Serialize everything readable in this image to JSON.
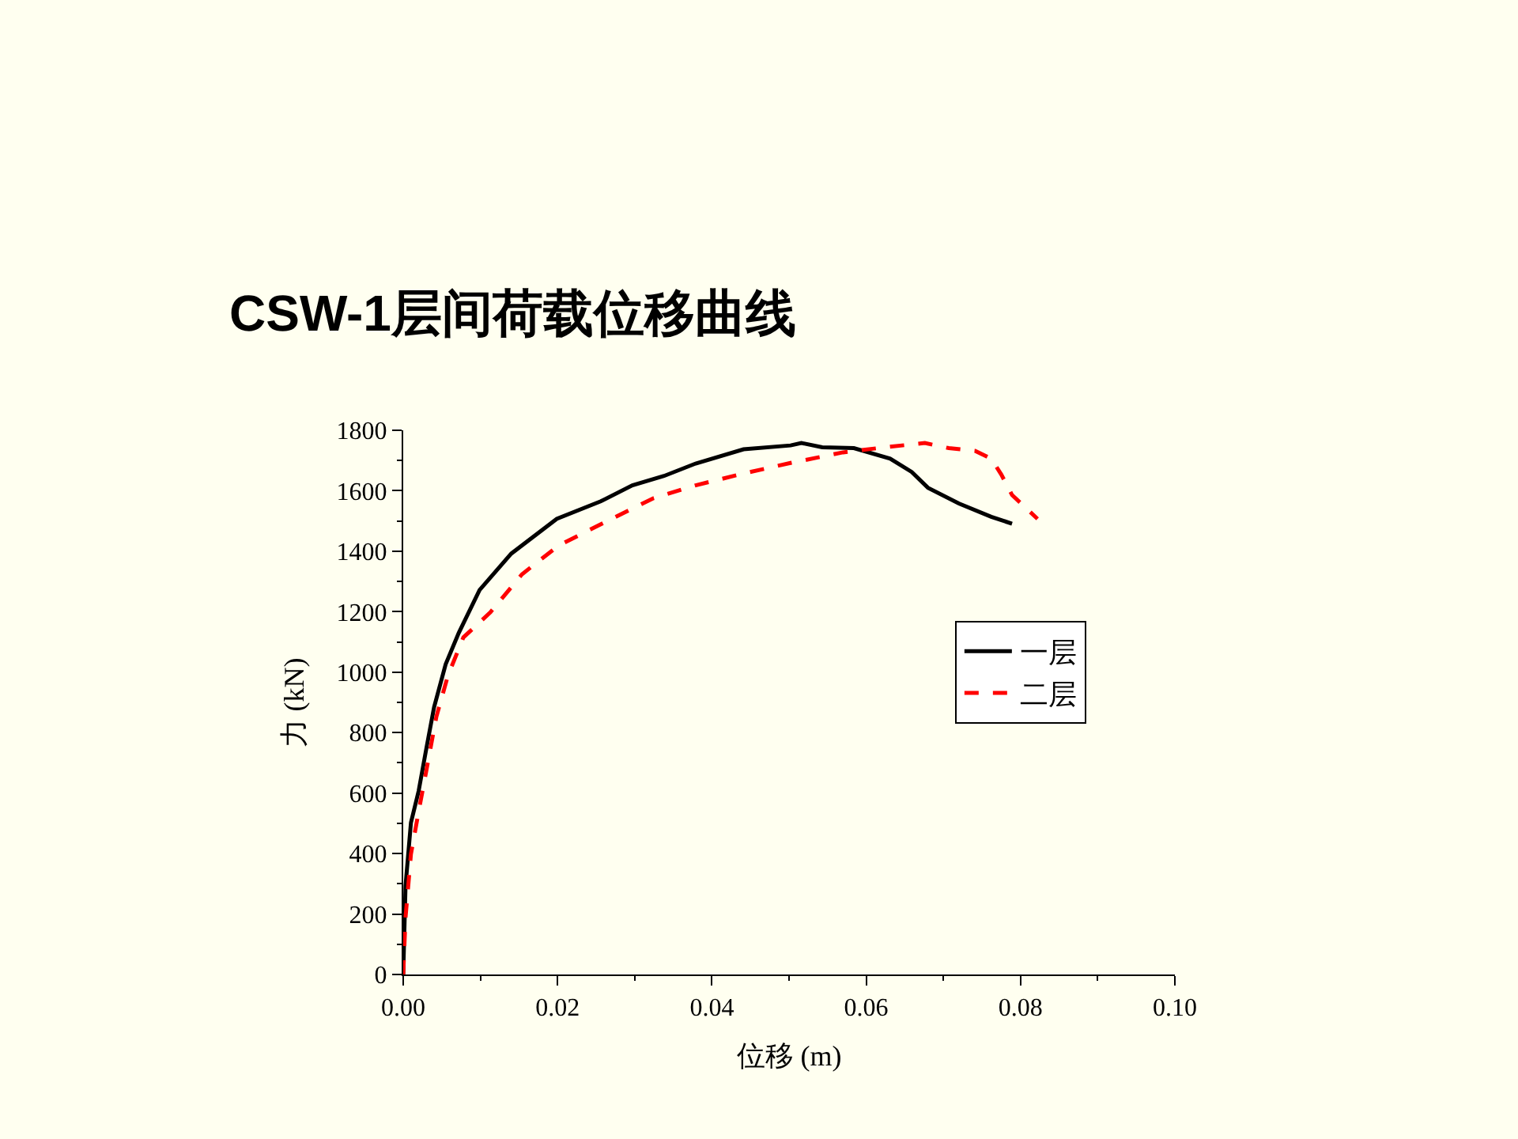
{
  "chart_data": {
    "type": "line",
    "title": "CSW-1层间荷载位移曲线",
    "xlabel": "位移 (m)",
    "ylabel": "力 (kN)",
    "xlim": [
      0,
      0.1
    ],
    "xticks": [
      {
        "value": 0,
        "label": "0.00"
      },
      {
        "value": 0.02,
        "label": "0.02"
      },
      {
        "value": 0.04,
        "label": "0.04"
      },
      {
        "value": 0.06,
        "label": "0.06"
      },
      {
        "value": 0.08,
        "label": "0.08"
      },
      {
        "value": 0.1,
        "label": "0.10"
      }
    ],
    "ylim": [
      0,
      1800
    ],
    "yticks": [
      0,
      200,
      400,
      600,
      800,
      1000,
      1200,
      1400,
      1600,
      1800
    ],
    "grid": false,
    "legend": "right",
    "marker": "none",
    "series": [
      {
        "name": "一层",
        "color": "#000000",
        "line_style": "solid",
        "x": [
          0,
          0.0003,
          0.001,
          0.002,
          0.003,
          0.004,
          0.0055,
          0.0072,
          0.0099,
          0.014,
          0.0199,
          0.0256,
          0.0297,
          0.0338,
          0.0379,
          0.0441,
          0.0502,
          0.0516,
          0.0543,
          0.0584,
          0.0631,
          0.0659,
          0.068,
          0.072,
          0.0762,
          0.0789
        ],
        "values": [
          0,
          293,
          502,
          607,
          748,
          884,
          1026,
          1130,
          1272,
          1392,
          1507,
          1565,
          1618,
          1649,
          1690,
          1737,
          1750,
          1758,
          1744,
          1741,
          1706,
          1662,
          1610,
          1558,
          1514,
          1491
        ]
      },
      {
        "name": "二层",
        "color": "#ff0000",
        "line_style": "dashed",
        "x": [
          0,
          0.0003,
          0.001,
          0.002,
          0.003,
          0.0043,
          0.0058,
          0.0078,
          0.0113,
          0.0154,
          0.0201,
          0.0262,
          0.0324,
          0.0379,
          0.0441,
          0.0502,
          0.057,
          0.0625,
          0.0676,
          0.0707,
          0.0741,
          0.0762,
          0.0775,
          0.0789,
          0.0822
        ],
        "values": [
          0,
          188,
          398,
          539,
          675,
          853,
          989,
          1115,
          1198,
          1324,
          1418,
          1497,
          1575,
          1618,
          1657,
          1692,
          1727,
          1744,
          1758,
          1741,
          1732,
          1706,
          1654,
          1586,
          1507
        ]
      }
    ]
  }
}
